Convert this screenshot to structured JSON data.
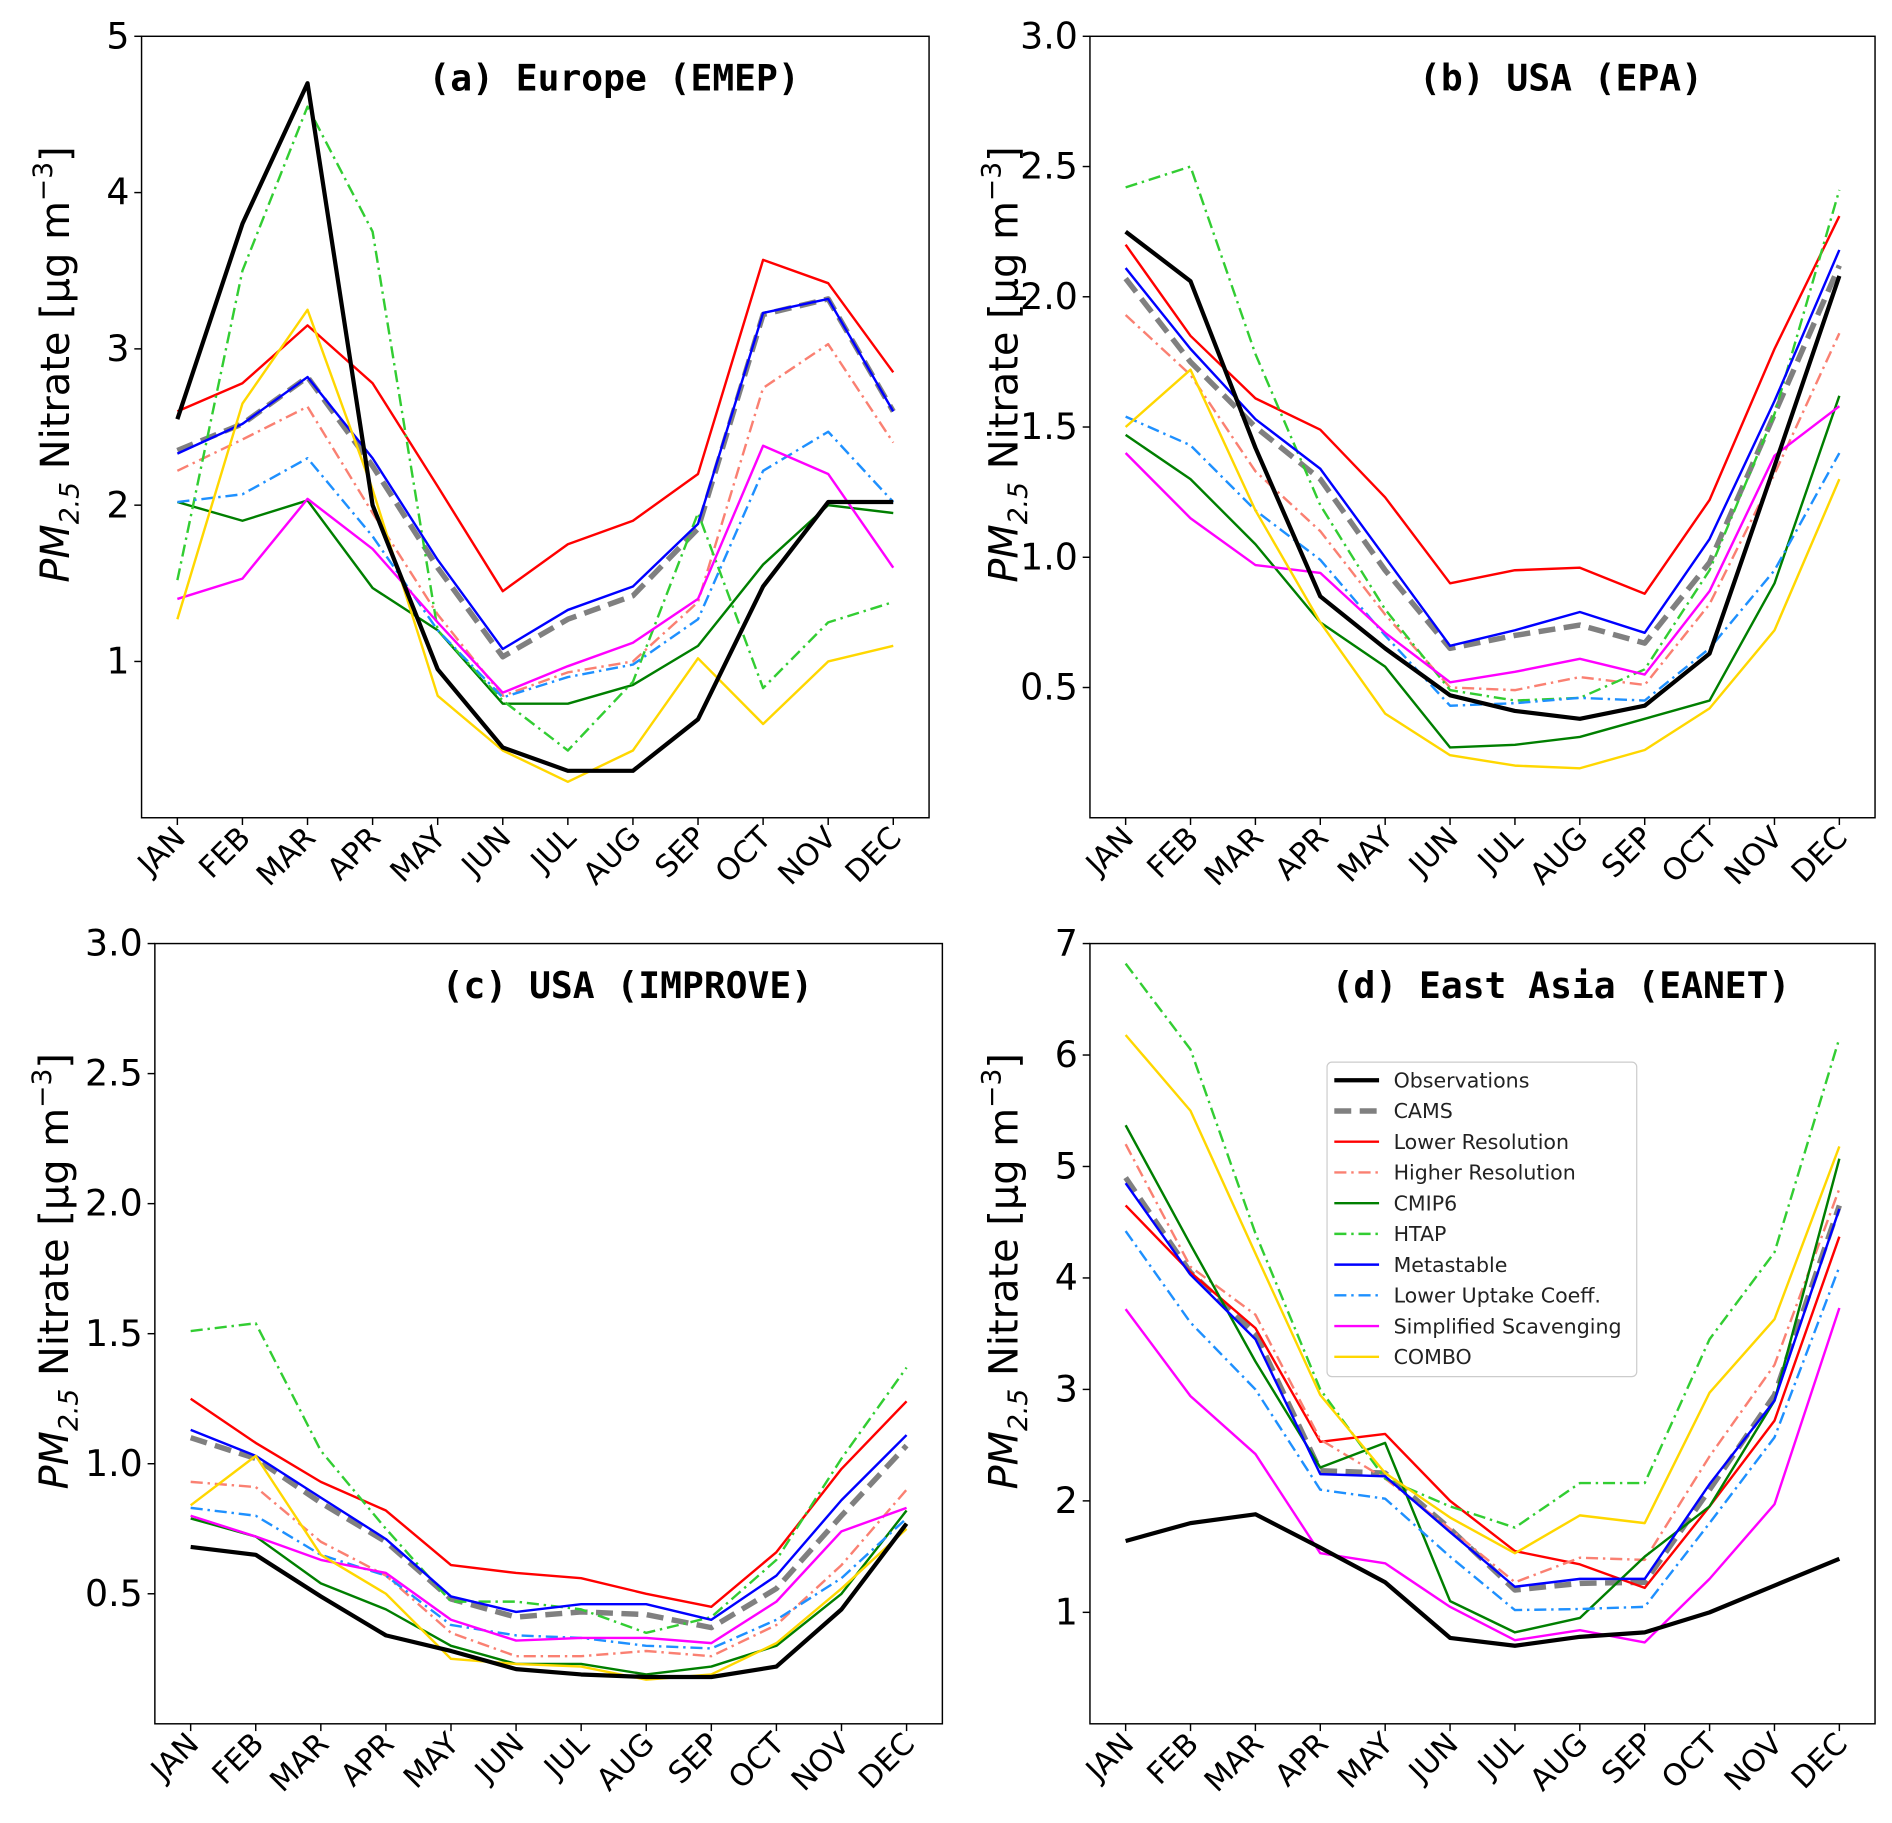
{
  "chart_data": {
    "type": "line",
    "months": [
      "JAN",
      "FEB",
      "MAR",
      "APR",
      "MAY",
      "JUN",
      "JUL",
      "AUG",
      "SEP",
      "OCT",
      "NOV",
      "DEC"
    ],
    "ylabel": {
      "main": "PM",
      "sub": "2.5",
      "rest": " Nitrate  [µg m",
      "sup": "−3",
      "end": "]"
    },
    "series_styles": [
      {
        "name": "Observations",
        "color": "#000000"
      },
      {
        "name": "CAMS",
        "color": "#808080"
      },
      {
        "name": "Lower Resolution",
        "color": "#ff0000"
      },
      {
        "name": "Higher Resolution",
        "color": "#fa8072"
      },
      {
        "name": "CMIP6",
        "color": "#007f00"
      },
      {
        "name": "HTAP",
        "color": "#32cd32"
      },
      {
        "name": "Metastable",
        "color": "#0000ff"
      },
      {
        "name": "Lower Uptake Coeff.",
        "color": "#1e90ff"
      },
      {
        "name": "Simplified Scavenging",
        "color": "#ff00ff"
      },
      {
        "name": "COMBO",
        "color": "#ffd700"
      }
    ],
    "panels": [
      {
        "title": "(a) Europe (EMEP)",
        "ylim": [
          0,
          5
        ],
        "yticks": [
          "1",
          "2",
          "3",
          "4",
          "5"
        ],
        "ytick_values": [
          1,
          2,
          3,
          4,
          5
        ],
        "series": [
          [
            2.55,
            3.8,
            4.7,
            2.0,
            0.95,
            0.45,
            0.3,
            0.3,
            0.63,
            1.48,
            2.02,
            2.02
          ],
          [
            2.35,
            2.52,
            2.82,
            2.25,
            1.6,
            1.03,
            1.27,
            1.42,
            1.85,
            3.22,
            3.32,
            2.6
          ],
          [
            2.6,
            2.78,
            3.15,
            2.78,
            2.12,
            1.45,
            1.75,
            1.9,
            2.2,
            3.57,
            3.42,
            2.85
          ],
          [
            2.22,
            2.42,
            2.63,
            1.95,
            1.3,
            0.78,
            0.93,
            1.0,
            1.38,
            2.75,
            3.03,
            2.4
          ],
          [
            2.02,
            1.9,
            2.03,
            1.47,
            1.2,
            0.73,
            0.73,
            0.85,
            1.1,
            1.62,
            2.0,
            1.95
          ],
          [
            1.52,
            3.5,
            4.55,
            3.75,
            1.2,
            0.75,
            0.43,
            0.87,
            1.95,
            0.83,
            1.25,
            1.38
          ],
          [
            2.33,
            2.52,
            2.82,
            2.3,
            1.65,
            1.08,
            1.33,
            1.48,
            1.88,
            3.23,
            3.32,
            2.6
          ],
          [
            2.02,
            2.07,
            2.3,
            1.8,
            1.2,
            0.77,
            0.9,
            0.98,
            1.27,
            2.22,
            2.47,
            2.02
          ],
          [
            1.4,
            1.53,
            2.04,
            1.72,
            1.25,
            0.8,
            0.97,
            1.12,
            1.4,
            2.38,
            2.2,
            1.6
          ],
          [
            1.27,
            2.65,
            3.25,
            2.1,
            0.78,
            0.43,
            0.23,
            0.43,
            1.02,
            0.6,
            1.0,
            1.1
          ]
        ]
      },
      {
        "title": "(b) USA (EPA)",
        "ylim": [
          0,
          3
        ],
        "yticks": [
          "0.5",
          "1.0",
          "1.5",
          "2.0",
          "2.5",
          "3.0"
        ],
        "ytick_values": [
          0.5,
          1,
          1.5,
          2,
          2.5,
          3
        ],
        "series": [
          [
            2.25,
            2.06,
            1.42,
            0.85,
            0.65,
            0.47,
            0.41,
            0.38,
            0.43,
            0.63,
            1.35,
            2.08
          ],
          [
            2.07,
            1.75,
            1.5,
            1.3,
            0.95,
            0.65,
            0.7,
            0.74,
            0.67,
            0.98,
            1.55,
            2.12
          ],
          [
            2.2,
            1.85,
            1.61,
            1.49,
            1.23,
            0.9,
            0.95,
            0.96,
            0.86,
            1.22,
            1.8,
            2.31
          ],
          [
            1.93,
            1.7,
            1.33,
            1.1,
            0.78,
            0.5,
            0.49,
            0.54,
            0.51,
            0.82,
            1.32,
            1.86
          ],
          [
            1.47,
            1.3,
            1.05,
            0.75,
            0.58,
            0.27,
            0.28,
            0.31,
            0.38,
            0.45,
            0.9,
            1.62
          ],
          [
            2.42,
            2.5,
            1.78,
            1.2,
            0.8,
            0.49,
            0.45,
            0.46,
            0.57,
            0.95,
            1.55,
            2.41
          ],
          [
            2.11,
            1.8,
            1.53,
            1.34,
            1.0,
            0.66,
            0.72,
            0.79,
            0.71,
            1.07,
            1.6,
            2.18
          ],
          [
            1.54,
            1.43,
            1.18,
            0.99,
            0.7,
            0.43,
            0.44,
            0.46,
            0.45,
            0.65,
            0.95,
            1.4
          ],
          [
            1.4,
            1.15,
            0.97,
            0.94,
            0.71,
            0.52,
            0.56,
            0.61,
            0.55,
            0.87,
            1.39,
            1.58
          ],
          [
            1.5,
            1.72,
            1.18,
            0.75,
            0.4,
            0.24,
            0.2,
            0.19,
            0.26,
            0.42,
            0.72,
            1.3
          ]
        ]
      },
      {
        "title": "(c) USA (IMPROVE)",
        "ylim": [
          0,
          3
        ],
        "yticks": [
          "0.5",
          "1.0",
          "1.5",
          "2.0",
          "2.5",
          "3.0"
        ],
        "ytick_values": [
          0.5,
          1,
          1.5,
          2,
          2.5,
          3
        ],
        "series": [
          [
            0.68,
            0.65,
            0.49,
            0.34,
            0.28,
            0.21,
            0.19,
            0.18,
            0.18,
            0.22,
            0.44,
            0.77
          ],
          [
            1.1,
            1.02,
            0.85,
            0.7,
            0.48,
            0.41,
            0.43,
            0.42,
            0.37,
            0.52,
            0.8,
            1.07
          ],
          [
            1.25,
            1.08,
            0.93,
            0.82,
            0.61,
            0.58,
            0.56,
            0.5,
            0.45,
            0.66,
            0.98,
            1.24
          ],
          [
            0.93,
            0.91,
            0.7,
            0.57,
            0.35,
            0.26,
            0.26,
            0.28,
            0.26,
            0.38,
            0.61,
            0.9
          ],
          [
            0.79,
            0.72,
            0.54,
            0.44,
            0.3,
            0.23,
            0.23,
            0.19,
            0.22,
            0.3,
            0.5,
            0.82
          ],
          [
            1.51,
            1.54,
            1.05,
            0.75,
            0.47,
            0.47,
            0.44,
            0.35,
            0.41,
            0.63,
            1.02,
            1.37
          ],
          [
            1.13,
            1.03,
            0.87,
            0.71,
            0.49,
            0.43,
            0.46,
            0.46,
            0.4,
            0.57,
            0.86,
            1.11
          ],
          [
            0.83,
            0.8,
            0.65,
            0.57,
            0.38,
            0.34,
            0.33,
            0.3,
            0.29,
            0.4,
            0.56,
            0.79
          ],
          [
            0.8,
            0.72,
            0.63,
            0.58,
            0.4,
            0.32,
            0.33,
            0.33,
            0.31,
            0.47,
            0.74,
            0.83
          ],
          [
            0.84,
            1.03,
            0.65,
            0.5,
            0.25,
            0.23,
            0.22,
            0.17,
            0.19,
            0.31,
            0.52,
            0.75
          ]
        ]
      },
      {
        "title": "(d) East Asia (EANET)",
        "ylim": [
          0,
          7
        ],
        "yticks": [
          "1",
          "2",
          "3",
          "4",
          "5",
          "6",
          "7"
        ],
        "ytick_values": [
          1,
          2,
          3,
          4,
          5,
          6,
          7
        ],
        "legend": "upper-center",
        "series": [
          [
            1.64,
            1.8,
            1.88,
            1.58,
            1.27,
            0.77,
            0.7,
            0.78,
            0.82,
            1.0,
            1.24,
            1.48
          ],
          [
            4.9,
            4.05,
            3.5,
            2.27,
            2.25,
            1.75,
            1.2,
            1.26,
            1.27,
            2.1,
            2.95,
            4.65
          ],
          [
            4.65,
            4.05,
            3.55,
            2.53,
            2.6,
            2.0,
            1.55,
            1.43,
            1.22,
            1.95,
            2.72,
            4.37
          ],
          [
            5.2,
            4.1,
            3.67,
            2.55,
            2.2,
            1.75,
            1.27,
            1.49,
            1.47,
            2.4,
            3.22,
            4.8
          ],
          [
            5.37,
            4.3,
            3.25,
            2.3,
            2.52,
            1.1,
            0.82,
            0.95,
            1.5,
            1.95,
            2.9,
            5.07
          ],
          [
            6.82,
            6.05,
            4.4,
            3.0,
            2.2,
            1.95,
            1.76,
            2.16,
            2.16,
            3.45,
            4.23,
            6.15
          ],
          [
            4.85,
            4.03,
            3.45,
            2.24,
            2.22,
            1.72,
            1.23,
            1.3,
            1.3,
            2.15,
            2.9,
            4.62
          ],
          [
            4.42,
            3.6,
            3.0,
            2.1,
            2.02,
            1.5,
            1.02,
            1.03,
            1.05,
            1.8,
            2.57,
            4.1
          ],
          [
            3.72,
            2.94,
            2.42,
            1.53,
            1.44,
            1.05,
            0.75,
            0.84,
            0.73,
            1.3,
            1.97,
            3.73
          ],
          [
            6.18,
            5.5,
            4.22,
            2.95,
            2.25,
            1.85,
            1.53,
            1.87,
            1.8,
            2.97,
            3.63,
            5.18
          ]
        ]
      }
    ]
  }
}
